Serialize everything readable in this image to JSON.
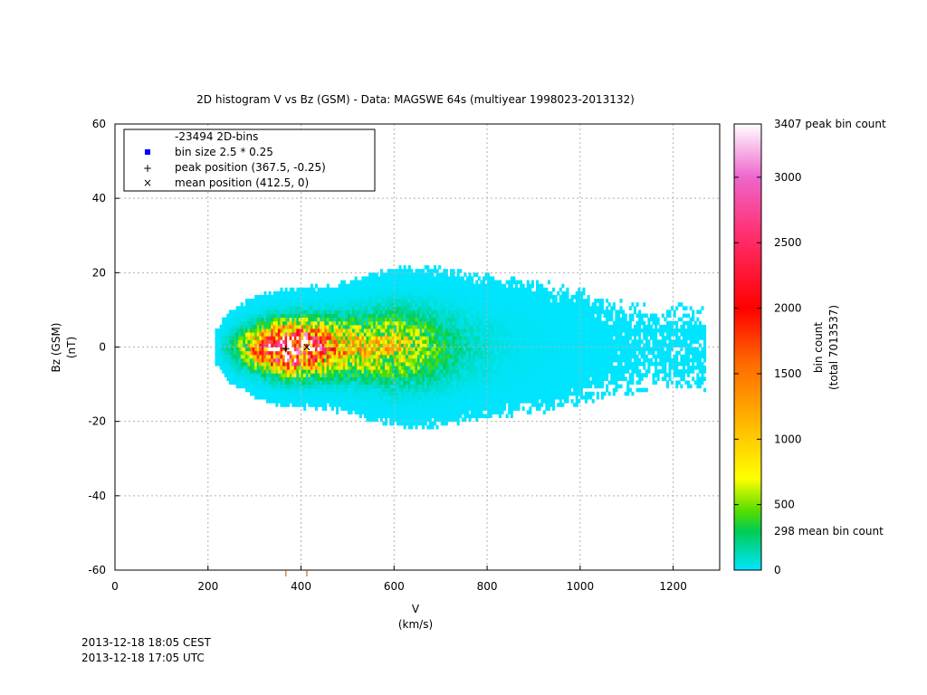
{
  "chart_data": {
    "type": "heatmap",
    "title": "2D histogram V vs Bz (GSM)  -  Data: MAGSWE 64s (multiyear 1998023-2013132)",
    "xlabel": "V",
    "xunit": "(km/s)",
    "ylabel": "Bz (GSM)",
    "yunit": "(nT)",
    "xlim": [
      0,
      1300
    ],
    "ylim": [
      -60,
      60
    ],
    "xticks": [
      0,
      200,
      400,
      600,
      800,
      1000,
      1200
    ],
    "yticks": [
      -60,
      -40,
      -20,
      0,
      20,
      40,
      60
    ],
    "grid": true,
    "legend": {
      "placement": "top-left",
      "header": "-23494 2D-bins",
      "entries": [
        {
          "label": "bin size 2.5 * 0.25",
          "marker": "square",
          "color": "#0000ff"
        },
        {
          "label": "peak position (367.5, -0.25)",
          "marker": "plus",
          "color": "#000000"
        },
        {
          "label": "mean position (412.5, 0)",
          "marker": "cross",
          "color": "#000000"
        }
      ]
    },
    "peak_position": [
      367.5,
      -0.25
    ],
    "mean_position": [
      412.5,
      0
    ],
    "colorbar": {
      "label": "bin count",
      "label2": "(total 7013537)",
      "min": 0,
      "max": 3407,
      "ticks": [
        0,
        500,
        1000,
        1500,
        2000,
        2500,
        3000
      ],
      "top_label": "3407 peak bin count",
      "mean_label": "298 mean bin count",
      "mean_value": 298,
      "stops": [
        {
          "value": 0,
          "color": "#00e5ff"
        },
        {
          "value": 298,
          "color": "#00cc55"
        },
        {
          "value": 450,
          "color": "#55dd00"
        },
        {
          "value": 700,
          "color": "#ffff00"
        },
        {
          "value": 1100,
          "color": "#ffbb00"
        },
        {
          "value": 1600,
          "color": "#ff6600"
        },
        {
          "value": 2000,
          "color": "#ff0000"
        },
        {
          "value": 2600,
          "color": "#ff3377"
        },
        {
          "value": 3000,
          "color": "#ee66cc"
        },
        {
          "value": 3407,
          "color": "#ffffff"
        }
      ]
    },
    "ridge": {
      "x": [
        220,
        250,
        280,
        310,
        340,
        370,
        400,
        430,
        460,
        500,
        550,
        600,
        650,
        700,
        760,
        820,
        880,
        950,
        1050,
        1150,
        1250
      ],
      "center_bz": [
        0,
        0,
        0,
        0,
        -0.2,
        -0.25,
        0,
        0,
        0,
        0,
        0,
        0,
        0,
        0,
        0,
        0,
        0,
        0,
        0,
        0,
        0
      ],
      "peak_count": [
        15,
        220,
        700,
        1600,
        2700,
        3407,
        3000,
        2200,
        1500,
        1000,
        900,
        850,
        600,
        300,
        120,
        45,
        18,
        6,
        2,
        1,
        1
      ],
      "spread_bz": [
        2.0,
        3.0,
        3.3,
        3.5,
        3.7,
        3.8,
        3.9,
        4.0,
        4.2,
        4.6,
        5.1,
        5.6,
        5.8,
        5.9,
        6.0,
        6.2,
        6.5,
        7.0,
        7.5,
        8.0,
        8.5
      ]
    }
  },
  "timestamps": {
    "local": "2013-12-18 18:05 CEST",
    "utc": "2013-12-18 17:05 UTC"
  }
}
